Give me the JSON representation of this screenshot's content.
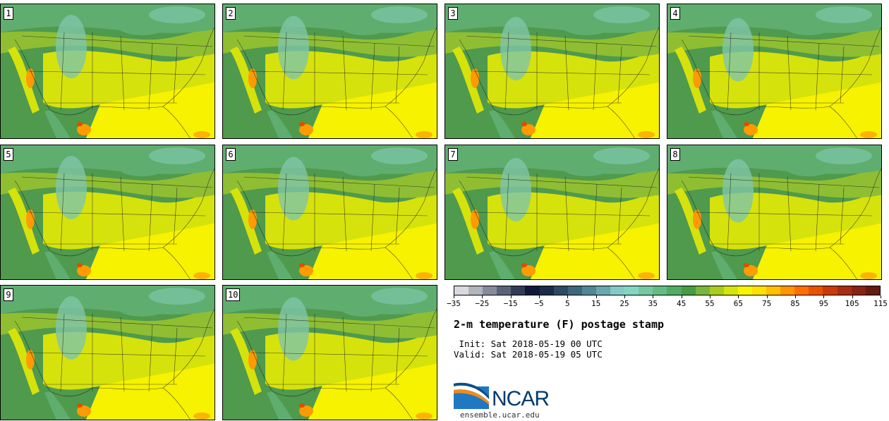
{
  "stamps": [
    {
      "label": "1"
    },
    {
      "label": "2"
    },
    {
      "label": "3"
    },
    {
      "label": "4"
    },
    {
      "label": "5"
    },
    {
      "label": "6"
    },
    {
      "label": "7"
    },
    {
      "label": "8"
    },
    {
      "label": "9"
    },
    {
      "label": "10"
    }
  ],
  "colorbar": {
    "colors": [
      "#d9d9de",
      "#b0b4bd",
      "#858b99",
      "#5b6377",
      "#313d57",
      "#0e1a38",
      "#1b2c48",
      "#2d4a62",
      "#3e677b",
      "#538694",
      "#6aa6ae",
      "#84cac4",
      "#83d6c3",
      "#74c9a1",
      "#64bb83",
      "#52ab63",
      "#459c43",
      "#79b53c",
      "#a9cc1e",
      "#d5e40c",
      "#f6f400",
      "#ffe100",
      "#ffc000",
      "#ff9600",
      "#ff6f00",
      "#e95300",
      "#c93b0a",
      "#a72e12",
      "#872416",
      "#651a12"
    ],
    "tick_labels": [
      "−35",
      "−25",
      "−15",
      "−5",
      "5",
      "15",
      "25",
      "35",
      "45",
      "55",
      "65",
      "75",
      "85",
      "95",
      "105",
      "115"
    ]
  },
  "title": "2-m temperature (F) postage stamp",
  "init_line": " Init: Sat 2018-05-19 00 UTC",
  "valid_line": "Valid: Sat 2018-05-19 05 UTC",
  "logo": {
    "text": "NCAR",
    "url": "ensemble.ucar.edu"
  },
  "palette": {
    "ocean_green": "#4f9a4d",
    "cold": "#7fc6a9",
    "cool": "#5fae6f",
    "mid": "#8fbe33",
    "warm": "#d6e20c",
    "hot": "#f6f200",
    "very_hot": "#ff9a00",
    "extreme": "#e24b00"
  }
}
